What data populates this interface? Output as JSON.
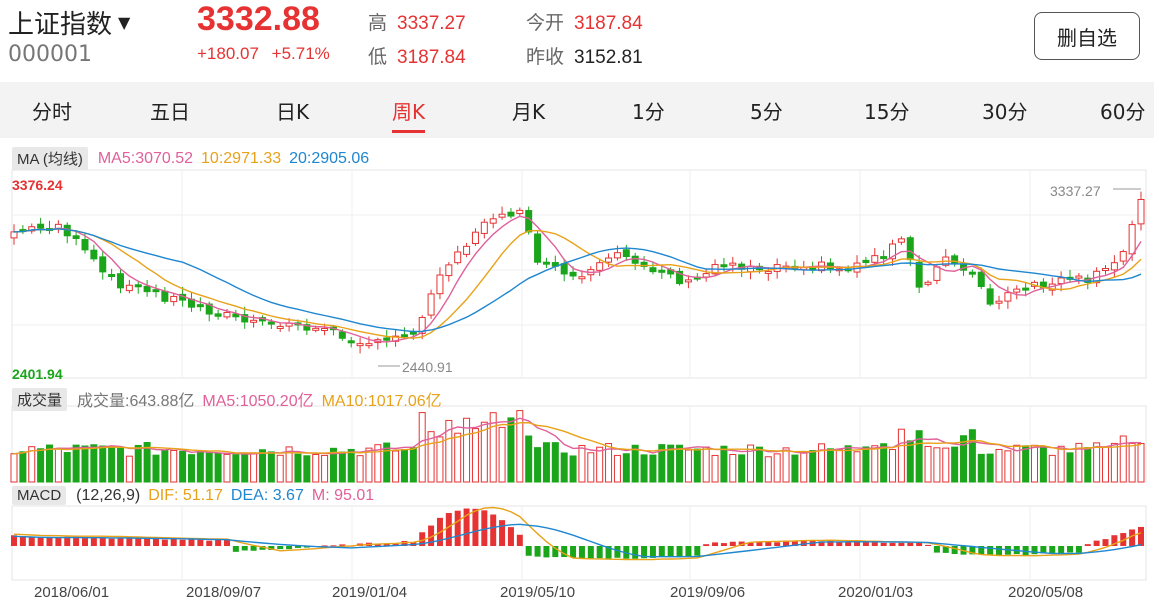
{
  "header": {
    "title": "上证指数",
    "code": "000001",
    "price": "3332.88",
    "change": "+180.07",
    "change_pct": "+5.71%",
    "high_label": "高",
    "high": "3337.27",
    "low_label": "低",
    "low": "3187.84",
    "open_label": "今开",
    "open": "3187.84",
    "prev_close_label": "昨收",
    "prev_close": "3152.81",
    "remove_watchlist_label": "删自选"
  },
  "tabs": [
    {
      "label": "分时"
    },
    {
      "label": "五日"
    },
    {
      "label": "日K"
    },
    {
      "label": "周K",
      "active": true
    },
    {
      "label": "月K"
    },
    {
      "label": "1分"
    },
    {
      "label": "5分"
    },
    {
      "label": "15分"
    },
    {
      "label": "30分"
    },
    {
      "label": "60分"
    }
  ],
  "ma_legend": {
    "label": "MA (均线)",
    "ma5": "MA5:3070.52",
    "ma10": "10:2971.33",
    "ma20": "20:2905.06"
  },
  "price_axis": {
    "top": "3376.24",
    "bottom": "2401.94",
    "high_marker": "3337.27",
    "low_marker": "2440.91"
  },
  "volume_legend": {
    "label": "成交量",
    "vol": "成交量:643.88亿",
    "ma5": "MA5:1050.20亿",
    "ma10": "MA10:1017.06亿"
  },
  "macd_legend": {
    "label": "MACD",
    "params": "(12,26,9)",
    "dif": "DIF: 51.17",
    "dea": "DEA: 3.67",
    "m": "M: 95.01"
  },
  "dates": [
    "2018/06/01",
    "2018/09/07",
    "2019/01/04",
    "2019/05/10",
    "2019/09/06",
    "2020/01/03",
    "2020/05/08"
  ],
  "colors": {
    "up": "#e63232",
    "down": "#1aa51a",
    "ma5": "#e0609a",
    "ma10": "#e8a21a",
    "ma20": "#1f87d0"
  }
}
